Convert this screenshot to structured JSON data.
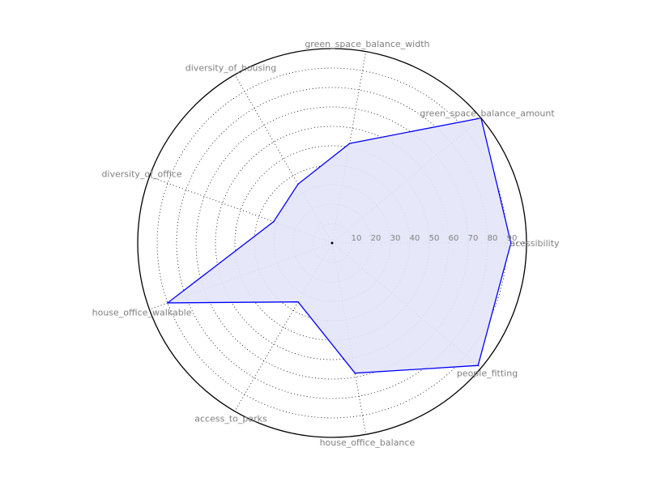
{
  "chart_data": {
    "type": "radar",
    "title": "",
    "axes": [
      "acessibility",
      "green_space_balance_amount",
      "green_space_balance_width",
      "diversity_of_housing",
      "diversity_of_office",
      "house_office_walkable",
      "access_to_parks",
      "house_office_balance",
      "people_fitting"
    ],
    "radial_ticks": [
      "10",
      "20",
      "30",
      "40",
      "50",
      "60",
      "70",
      "80",
      "90"
    ],
    "rlim": [
      0,
      100
    ],
    "grid": true,
    "series": [
      {
        "values": [
          92,
          100,
          52,
          35,
          32,
          90,
          35,
          68,
          98
        ],
        "line_color": "#0000ff",
        "fill_color": "#e4e4fa"
      }
    ]
  }
}
